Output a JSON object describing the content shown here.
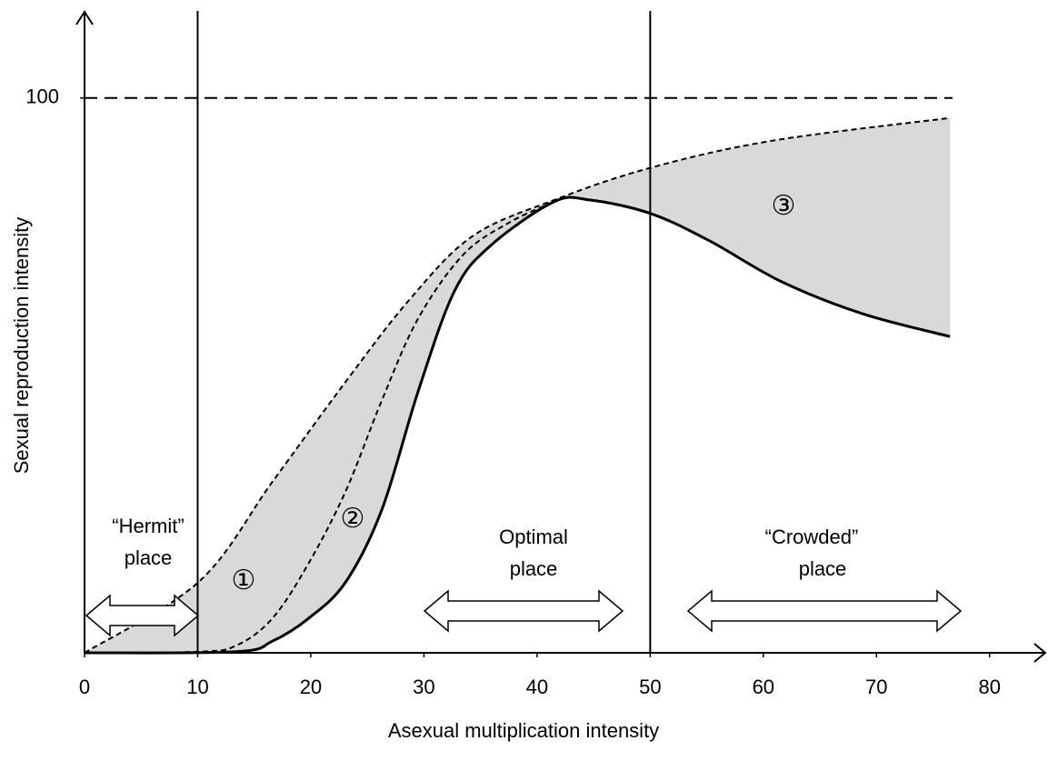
{
  "chart_data": {
    "type": "line",
    "xlabel": "Asexual multiplication intensity",
    "ylabel": "Sexual reproduction intensity",
    "xlim": [
      0,
      84.6
    ],
    "ylim": [
      0,
      115.2
    ],
    "xticks": [
      0,
      10,
      20,
      30,
      40,
      50,
      60,
      70,
      80
    ],
    "yticks": [
      100
    ],
    "reference_lines": {
      "x": [
        10,
        50
      ],
      "y": [
        100
      ]
    },
    "fill_between": true,
    "fill_color": "#d9d9d9",
    "series": [
      {
        "style": "dashed",
        "color": "#000000",
        "x": [
          0,
          10.1,
          16.6,
          23.1,
          28.7,
          34.3,
          41.5,
          50,
          60.8,
          76.5
        ],
        "values": [
          0,
          12.8,
          30.8,
          48.9,
          63.6,
          75.1,
          81.6,
          87.4,
          92.3,
          96.4
        ]
      },
      {
        "style": "dashed",
        "color": "#000000",
        "x": [
          0,
          10.1,
          13.4,
          16.6,
          19.8,
          23.1,
          26.3,
          29.5,
          33.5,
          37.5,
          41.5
        ],
        "values": [
          0,
          0.2,
          1.3,
          6.2,
          16.1,
          29.2,
          45.6,
          60.3,
          71.8,
          77.5,
          81.3
        ]
      },
      {
        "style": "solid",
        "color": "#000000",
        "x": [
          0,
          13.4,
          16.6,
          19.8,
          23.1,
          26.3,
          29.5,
          32.7,
          35.9,
          41.5,
          44.7,
          50,
          55.2,
          61.6,
          68.8,
          76.5
        ],
        "values": [
          0,
          0.2,
          2.1,
          6.2,
          12.8,
          25.9,
          47.2,
          65.2,
          73.4,
          81.3,
          81.6,
          79.2,
          74.3,
          66.9,
          61.1,
          57
        ]
      }
    ],
    "annotations": [
      {
        "lines": [
          "“Hermit”",
          "place"
        ]
      },
      {
        "lines": [
          "Optimal",
          "place"
        ]
      },
      {
        "lines": [
          "“Crowded”",
          "place"
        ]
      },
      {
        "lines": [
          "①"
        ]
      },
      {
        "lines": [
          "②"
        ]
      },
      {
        "lines": [
          "③"
        ]
      }
    ]
  }
}
